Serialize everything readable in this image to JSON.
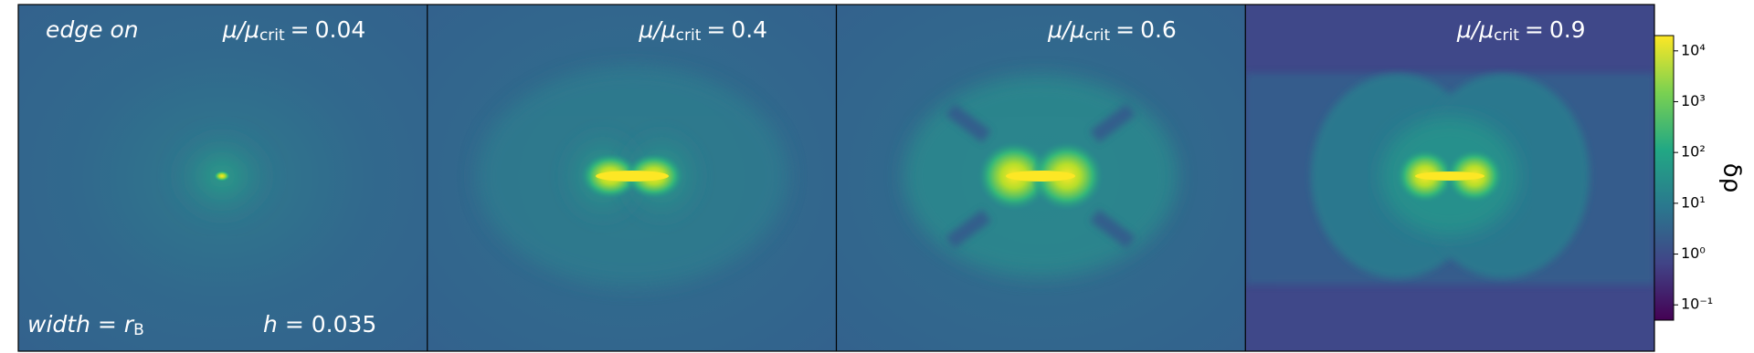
{
  "panels": [
    {
      "ratio": 0.04
    },
    {
      "ratio": 0.4
    },
    {
      "ratio": 0.6
    },
    {
      "ratio": 0.9
    }
  ],
  "ratio_symbol": "μ/μ",
  "ratio_sub": "crit",
  "equals": "=",
  "view": "edge on",
  "width_label": {
    "name": "width",
    "symbol": "r",
    "sub": "B"
  },
  "h_label": {
    "name": "h",
    "value": 0.035
  },
  "colorbar": {
    "label": "δρ",
    "log": true,
    "clim": [
      0.05,
      20000
    ],
    "ticks": [
      {
        "value": 0.1,
        "label": "10⁻¹"
      },
      {
        "value": 1,
        "label": "10⁰"
      },
      {
        "value": 10,
        "label": "10¹"
      },
      {
        "value": 100,
        "label": "10²"
      },
      {
        "value": 1000,
        "label": "10³"
      },
      {
        "value": 10000,
        "label": "10⁴"
      }
    ]
  }
}
